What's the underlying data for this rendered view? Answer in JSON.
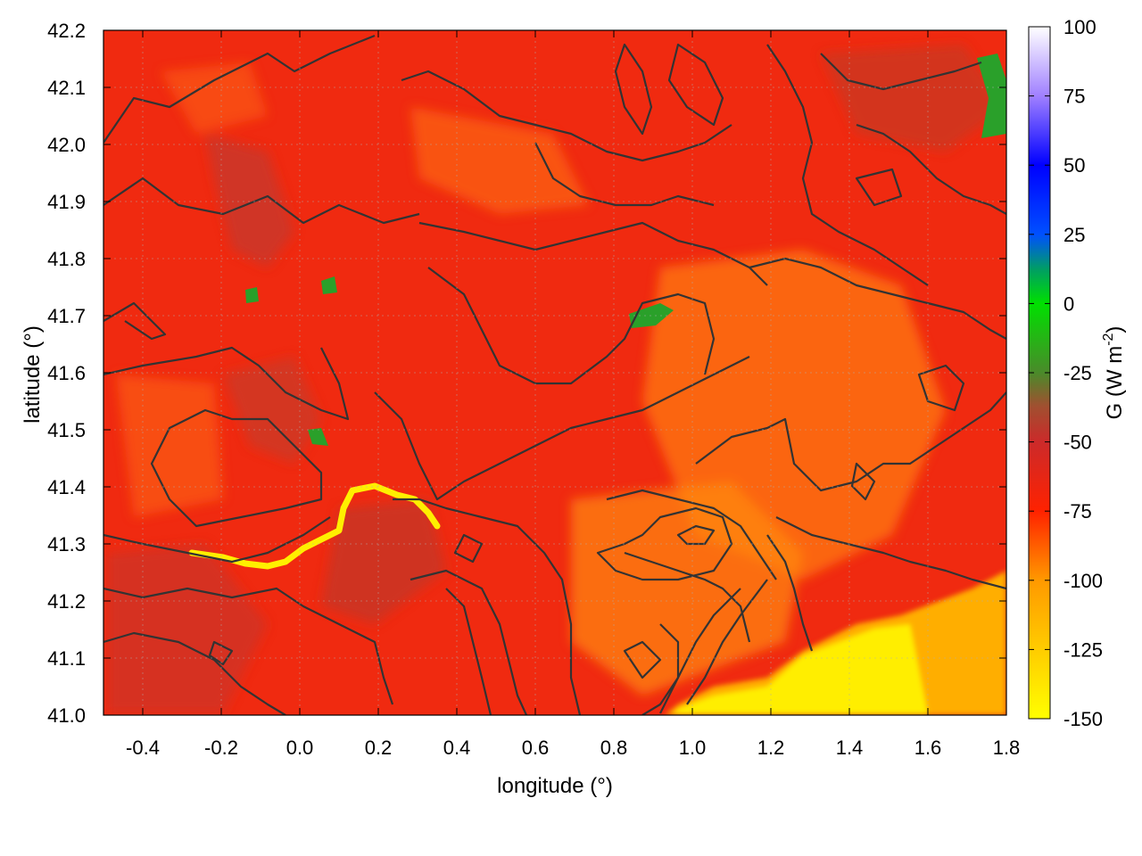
{
  "chart_data": {
    "type": "heatmap",
    "title": "",
    "xlabel": "longitude (°)",
    "ylabel": "latitude (°)",
    "colorbar_label": "G (W m",
    "colorbar_label_sup": "-2",
    "colorbar_label_end": ")",
    "xlim": [
      -0.5,
      1.8
    ],
    "ylim": [
      41.0,
      42.2
    ],
    "x_ticks": [
      -0.4,
      -0.2,
      0.0,
      0.2,
      0.4,
      0.6,
      0.8,
      1.0,
      1.2,
      1.4,
      1.6,
      1.8
    ],
    "x_tick_labels": [
      "-0.4",
      "-0.2",
      "0.0",
      "0.2",
      "0.4",
      "0.6",
      "0.8",
      "1.0",
      "1.2",
      "1.4",
      "1.6",
      "1.8"
    ],
    "y_ticks": [
      41.0,
      41.1,
      41.2,
      41.3,
      41.4,
      41.5,
      41.6,
      41.7,
      41.8,
      41.9,
      42.0,
      42.1,
      42.2
    ],
    "y_tick_labels": [
      "41.0",
      "41.1",
      "41.2",
      "41.3",
      "41.4",
      "41.5",
      "41.6",
      "41.7",
      "41.8",
      "41.9",
      "42.0",
      "42.1",
      "42.2"
    ],
    "colorbar_range": [
      -150,
      100
    ],
    "colorbar_ticks": [
      100,
      75,
      50,
      25,
      0,
      -25,
      -50,
      -75,
      -100,
      -125,
      -150
    ],
    "colorbar_tick_labels": [
      "100",
      "75",
      "50",
      "25",
      "0",
      "-25",
      "-50",
      "-75",
      "-100",
      "-125",
      "-150"
    ],
    "colormap": [
      {
        "value": -150,
        "color": "#ffff00"
      },
      {
        "value": -125,
        "color": "#ffcc00"
      },
      {
        "value": -100,
        "color": "#ff9900"
      },
      {
        "value": -75,
        "color": "#ff2200"
      },
      {
        "value": -50,
        "color": "#cc2a2a"
      },
      {
        "value": -37,
        "color": "#a05030"
      },
      {
        "value": -25,
        "color": "#4a8a2a"
      },
      {
        "value": 0,
        "color": "#00e000"
      },
      {
        "value": 12,
        "color": "#00a060"
      },
      {
        "value": 25,
        "color": "#0050ff"
      },
      {
        "value": 50,
        "color": "#0000ff"
      },
      {
        "value": 75,
        "color": "#a080ff"
      },
      {
        "value": 100,
        "color": "#ffffff"
      }
    ],
    "grid": true,
    "contours": true,
    "field_description_regions": [
      {
        "lon": 1.55,
        "lat": 41.05,
        "value": -140
      },
      {
        "lon": 1.25,
        "lat": 41.05,
        "value": -145
      },
      {
        "lon": 1.75,
        "lat": 41.15,
        "value": -105
      }
    ]
  }
}
